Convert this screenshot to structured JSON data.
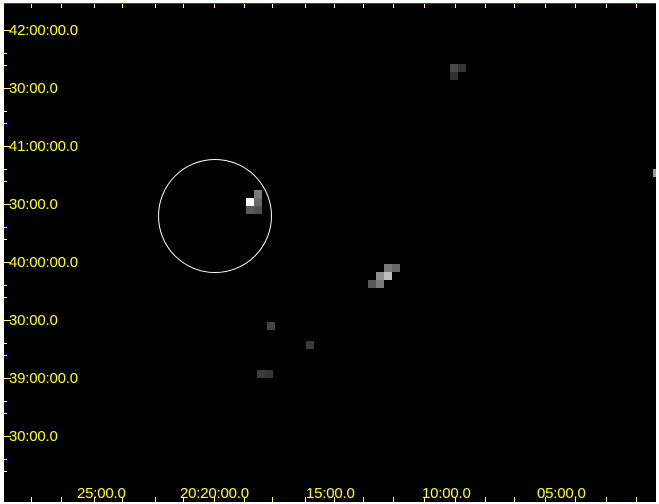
{
  "window": {
    "title": ""
  },
  "axes": {
    "y_labels": [
      "42:00:00.0",
      "30:00.0",
      "41:00:00.0",
      "30:00.0",
      "40:00:00.0",
      "30:00.0",
      "39:00:00.0",
      "30:00.0"
    ],
    "x_labels": [
      "25:00.0",
      "20:20:00.0",
      "15:00.0",
      "10:00.0",
      "05:00.0"
    ]
  },
  "colors": {
    "background": "#000000",
    "axis_text": "#ffff2b",
    "frame_line": "#1f2fff",
    "circle": "#ffffff"
  },
  "annotations": {
    "region_circle": "circular selection region"
  }
}
